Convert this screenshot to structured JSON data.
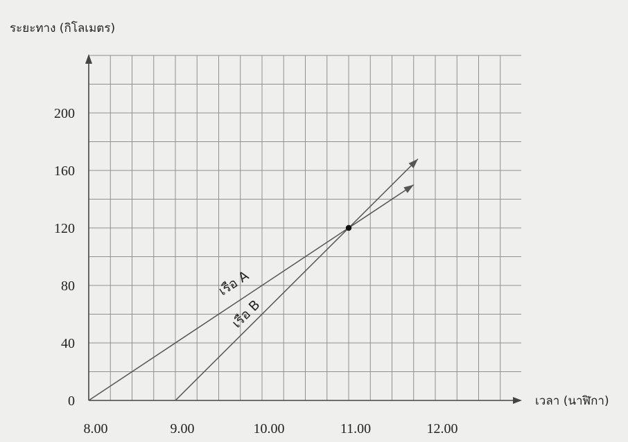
{
  "chart_data": {
    "type": "line",
    "title": "",
    "ylabel": "ระยะทาง (กิโลเมตร)",
    "xlabel": "เวลา (นาฬิกา)",
    "xlim": [
      8.0,
      13.0
    ],
    "ylim": [
      0,
      240
    ],
    "x_grid_step": 0.25,
    "y_grid_step": 20,
    "grid": true,
    "x_ticks": [
      {
        "value": 8,
        "label": "8.00"
      },
      {
        "value": 9,
        "label": "9.00"
      },
      {
        "value": 10,
        "label": "10.00"
      },
      {
        "value": 11,
        "label": "11.00"
      },
      {
        "value": 12,
        "label": "12.00"
      }
    ],
    "y_ticks": [
      {
        "value": 0,
        "label": "0"
      },
      {
        "value": 40,
        "label": "40"
      },
      {
        "value": 80,
        "label": "80"
      },
      {
        "value": 120,
        "label": "120"
      },
      {
        "value": 160,
        "label": "160"
      },
      {
        "value": 200,
        "label": "200"
      }
    ],
    "series": [
      {
        "name": "เรือ A",
        "x": [
          8.0,
          11.0,
          11.75
        ],
        "y": [
          0,
          120,
          150
        ],
        "label_at": [
          9.7,
          79
        ]
      },
      {
        "name": "เรือ B",
        "x": [
          9.0,
          11.0,
          11.8
        ],
        "y": [
          0,
          120,
          168
        ],
        "label_at": [
          9.85,
          58
        ]
      }
    ],
    "annotations": [
      {
        "type": "point",
        "x": 11.0,
        "y": 120
      }
    ],
    "colors": {
      "grid": "#8f8f8f",
      "line": "#555555",
      "axis": "#444444",
      "point": "#111111"
    }
  }
}
